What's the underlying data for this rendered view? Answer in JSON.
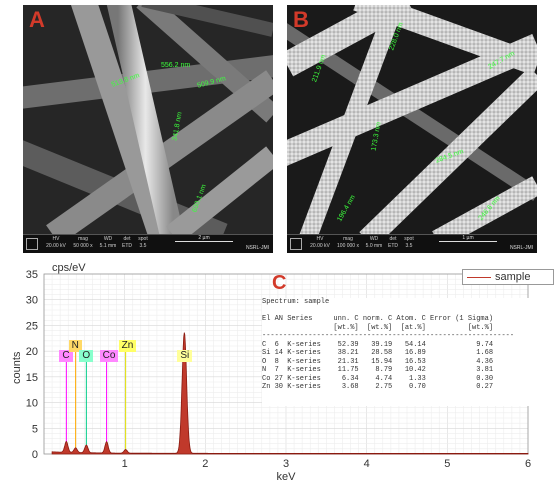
{
  "panel_a": {
    "letter": "A",
    "measurements": [
      "556.2 nm",
      "513.8 nm",
      "509.9 nm",
      "341.8 nm",
      "600.1 nm"
    ],
    "infobar": [
      {
        "label": "HV",
        "value": "20.00 kV"
      },
      {
        "label": "mag",
        "value": "50 000 x"
      },
      {
        "label": "WD",
        "value": "5.1 mm"
      },
      {
        "label": "det",
        "value": "ETD"
      },
      {
        "label": "spot",
        "value": "3.5"
      }
    ],
    "scale": "2 µm",
    "facility": "NSRL-JMI"
  },
  "panel_b": {
    "letter": "B",
    "measurements": [
      "228.0 nm",
      "211.9 nm",
      "247.7 nm",
      "173.3 nm",
      "284.5 nm",
      "196.4 nm",
      "246.6 nm"
    ],
    "infobar": [
      {
        "label": "HV",
        "value": "20.00 kV"
      },
      {
        "label": "mag",
        "value": "100 000 x"
      },
      {
        "label": "WD",
        "value": "5.0 mm"
      },
      {
        "label": "det",
        "value": "ETD"
      },
      {
        "label": "spot",
        "value": "3.5"
      }
    ],
    "scale": "1 µm",
    "facility": "NSRL-JMI"
  },
  "panel_c": {
    "letter": "C",
    "table_title": "Spectrum: sample",
    "table_header": [
      "El",
      "AN",
      "Series",
      "unn. C",
      "norm. C",
      "Atom. C",
      "Error (1 Sigma)"
    ],
    "table_units": [
      "",
      "",
      "",
      "[wt.%]",
      "[wt.%]",
      "[at.%]",
      "[wt.%]"
    ],
    "table_rows": [
      [
        "C",
        "6",
        "K-series",
        "52.39",
        "39.19",
        "54.14",
        "9.74"
      ],
      [
        "Si",
        "14",
        "K-series",
        "38.21",
        "28.58",
        "16.89",
        "1.68"
      ],
      [
        "O",
        "8",
        "K-series",
        "21.31",
        "15.94",
        "16.53",
        "4.36"
      ],
      [
        "N",
        "7",
        "K-series",
        "11.75",
        "8.79",
        "10.42",
        "3.81"
      ],
      [
        "Co",
        "27",
        "K-series",
        "6.34",
        "4.74",
        "1.33",
        "0.30"
      ],
      [
        "Zn",
        "30",
        "K-series",
        "3.68",
        "2.75",
        "0.70",
        "0.27"
      ]
    ],
    "element_labels": [
      {
        "text": "C",
        "color": "#ff88ff",
        "kev": 0.277
      },
      {
        "text": "N",
        "color": "#ffd966",
        "kev": 0.392
      },
      {
        "text": "O",
        "color": "#88ffcc",
        "kev": 0.525
      },
      {
        "text": "Co",
        "color": "#ff88ff",
        "kev": 0.776
      },
      {
        "text": "Zn",
        "color": "#ffff66",
        "kev": 1.012
      },
      {
        "text": "Si",
        "color": "#ffff99",
        "kev": 1.74
      }
    ]
  },
  "chart_data": {
    "type": "line",
    "title": "",
    "xlabel": "keV",
    "ylabel": "counts",
    "y_unit_label": "cps/eV",
    "xlim": [
      0,
      6
    ],
    "ylim": [
      0,
      35
    ],
    "x_ticks": [
      "1",
      "2",
      "3",
      "4",
      "5",
      "6"
    ],
    "y_ticks": [
      "0",
      "5",
      "10",
      "15",
      "20",
      "25",
      "30",
      "35"
    ],
    "grid": true,
    "legend_position": "top-right",
    "series": [
      {
        "name": "sample",
        "color": "#c0392b",
        "peaks": [
          {
            "x": 0.277,
            "y": 2.1
          },
          {
            "x": 0.392,
            "y": 0.9
          },
          {
            "x": 0.525,
            "y": 1.5
          },
          {
            "x": 0.776,
            "y": 2.2
          },
          {
            "x": 1.012,
            "y": 0.7
          },
          {
            "x": 1.74,
            "y": 23.5
          }
        ]
      }
    ],
    "marker_lines": [
      {
        "x": 0.277,
        "y": 18.5,
        "color": "#ff00ff"
      },
      {
        "x": 0.392,
        "y": 20.5,
        "color": "#ffaa00"
      },
      {
        "x": 0.525,
        "y": 18.5,
        "color": "#00cc88"
      },
      {
        "x": 0.776,
        "y": 18.5,
        "color": "#ff00ff"
      },
      {
        "x": 1.012,
        "y": 20.5,
        "color": "#dddd00"
      },
      {
        "x": 1.74,
        "y": 18.5,
        "color": "#dddd00"
      }
    ]
  }
}
